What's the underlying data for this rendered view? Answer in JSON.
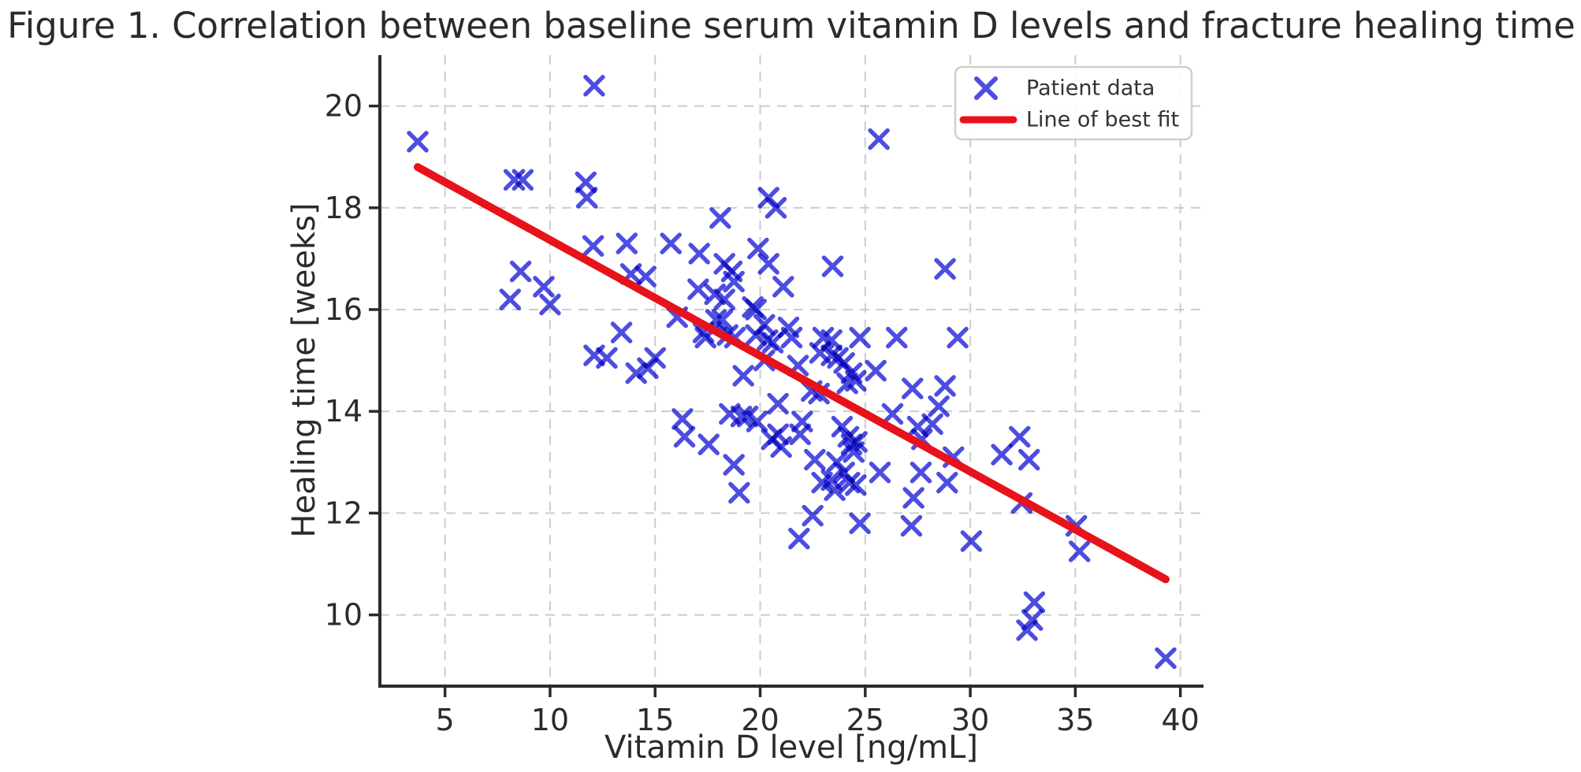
{
  "chart_data": {
    "type": "scatter",
    "title": "Figure 1. Correlation between baseline serum vitamin D levels and fracture healing time",
    "xlabel": "Vitamin D level [ng/mL]",
    "ylabel": "Healing time [weeks]",
    "xlim": [
      1.9,
      41.1
    ],
    "ylim": [
      8.6,
      21.0
    ],
    "x_ticks": [
      5,
      10,
      15,
      20,
      25,
      30,
      35,
      40
    ],
    "y_ticks": [
      10,
      12,
      14,
      16,
      18,
      20
    ],
    "grid": true,
    "grid_style": "dashed",
    "legend_position": "upper right",
    "series": [
      {
        "name": "Patient data",
        "type": "scatter",
        "marker": "x",
        "color": "#4d4de0",
        "points": [
          [
            3.7,
            19.3
          ],
          [
            12.1,
            20.4
          ],
          [
            8.3,
            18.55
          ],
          [
            8.7,
            18.55
          ],
          [
            11.7,
            18.5
          ],
          [
            11.75,
            18.2
          ],
          [
            12.05,
            17.25
          ],
          [
            13.65,
            17.3
          ],
          [
            25.65,
            19.35
          ],
          [
            20.4,
            18.2
          ],
          [
            20.75,
            18.0
          ],
          [
            18.1,
            17.8
          ],
          [
            15.75,
            17.3
          ],
          [
            17.1,
            17.1
          ],
          [
            18.3,
            16.9
          ],
          [
            19.9,
            17.2
          ],
          [
            20.4,
            16.9
          ],
          [
            23.45,
            16.85
          ],
          [
            28.8,
            16.8
          ],
          [
            8.6,
            16.75
          ],
          [
            8.1,
            16.2
          ],
          [
            9.7,
            16.45
          ],
          [
            10.0,
            16.1
          ],
          [
            13.85,
            16.7
          ],
          [
            14.55,
            16.65
          ],
          [
            13.4,
            15.55
          ],
          [
            12.1,
            15.1
          ],
          [
            12.7,
            15.05
          ],
          [
            14.1,
            14.75
          ],
          [
            14.65,
            14.85
          ],
          [
            17.05,
            16.4
          ],
          [
            17.85,
            16.3
          ],
          [
            18.3,
            16.2
          ],
          [
            18.75,
            16.55
          ],
          [
            18.65,
            16.75
          ],
          [
            19.65,
            16.05
          ],
          [
            19.8,
            16.0
          ],
          [
            21.1,
            16.45
          ],
          [
            16.05,
            15.85
          ],
          [
            17.9,
            15.8
          ],
          [
            18.2,
            15.8
          ],
          [
            17.3,
            15.55
          ],
          [
            17.4,
            15.45
          ],
          [
            18.45,
            15.5
          ],
          [
            18.8,
            15.45
          ],
          [
            19.8,
            15.5
          ],
          [
            20.35,
            15.4
          ],
          [
            20.6,
            15.35
          ],
          [
            20.2,
            15.7
          ],
          [
            21.35,
            15.65
          ],
          [
            21.5,
            15.45
          ],
          [
            15.0,
            15.05
          ],
          [
            20.2,
            15.0
          ],
          [
            19.2,
            14.7
          ],
          [
            21.8,
            14.9
          ],
          [
            20.85,
            14.15
          ],
          [
            18.55,
            13.95
          ],
          [
            19.1,
            13.9
          ],
          [
            19.4,
            13.9
          ],
          [
            19.85,
            13.8
          ],
          [
            16.3,
            13.85
          ],
          [
            16.4,
            13.5
          ],
          [
            17.55,
            13.35
          ],
          [
            20.55,
            13.45
          ],
          [
            20.85,
            13.55
          ],
          [
            21.0,
            13.3
          ],
          [
            18.75,
            12.95
          ],
          [
            19.0,
            12.4
          ],
          [
            23.0,
            15.45
          ],
          [
            23.4,
            15.4
          ],
          [
            22.85,
            15.15
          ],
          [
            23.4,
            15.1
          ],
          [
            23.7,
            15.05
          ],
          [
            24.75,
            15.45
          ],
          [
            26.5,
            15.45
          ],
          [
            29.4,
            15.45
          ],
          [
            24.0,
            14.95
          ],
          [
            24.35,
            14.75
          ],
          [
            24.55,
            14.6
          ],
          [
            24.15,
            14.55
          ],
          [
            25.5,
            14.8
          ],
          [
            27.25,
            14.45
          ],
          [
            28.8,
            14.5
          ],
          [
            22.45,
            14.4
          ],
          [
            22.8,
            14.35
          ],
          [
            28.5,
            14.1
          ],
          [
            26.3,
            13.95
          ],
          [
            22.0,
            13.8
          ],
          [
            21.9,
            13.55
          ],
          [
            23.9,
            13.7
          ],
          [
            24.2,
            13.5
          ],
          [
            24.6,
            13.4
          ],
          [
            24.35,
            13.35
          ],
          [
            27.5,
            13.7
          ],
          [
            28.2,
            13.75
          ],
          [
            27.7,
            13.45
          ],
          [
            24.45,
            13.2
          ],
          [
            22.6,
            13.05
          ],
          [
            23.65,
            13.0
          ],
          [
            24.0,
            12.8
          ],
          [
            25.7,
            12.8
          ],
          [
            27.65,
            12.8
          ],
          [
            23.4,
            12.65
          ],
          [
            32.35,
            13.5
          ],
          [
            31.5,
            13.15
          ],
          [
            32.8,
            13.05
          ],
          [
            29.2,
            13.1
          ],
          [
            21.85,
            11.5
          ],
          [
            22.5,
            11.95
          ],
          [
            22.95,
            12.6
          ],
          [
            23.55,
            12.45
          ],
          [
            24.25,
            12.6
          ],
          [
            24.55,
            12.55
          ],
          [
            27.3,
            12.3
          ],
          [
            27.2,
            11.75
          ],
          [
            24.75,
            11.8
          ],
          [
            28.9,
            12.6
          ],
          [
            32.45,
            12.2
          ],
          [
            35.05,
            11.75
          ],
          [
            30.05,
            11.45
          ],
          [
            35.2,
            11.25
          ],
          [
            33.05,
            10.25
          ],
          [
            32.95,
            9.9
          ],
          [
            32.7,
            9.7
          ],
          [
            39.3,
            9.15
          ]
        ]
      },
      {
        "name": "Line of best fit",
        "type": "line",
        "color": "#e8121a",
        "points": [
          [
            3.7,
            18.8
          ],
          [
            39.3,
            10.7
          ]
        ]
      }
    ]
  },
  "colors": {
    "background": "#ffffff",
    "axis": "#2a2a2a",
    "grid": "#cccccc",
    "text": "#2b2b2b",
    "marker_blue": "#4d4de0",
    "line_red": "#e8121a"
  }
}
